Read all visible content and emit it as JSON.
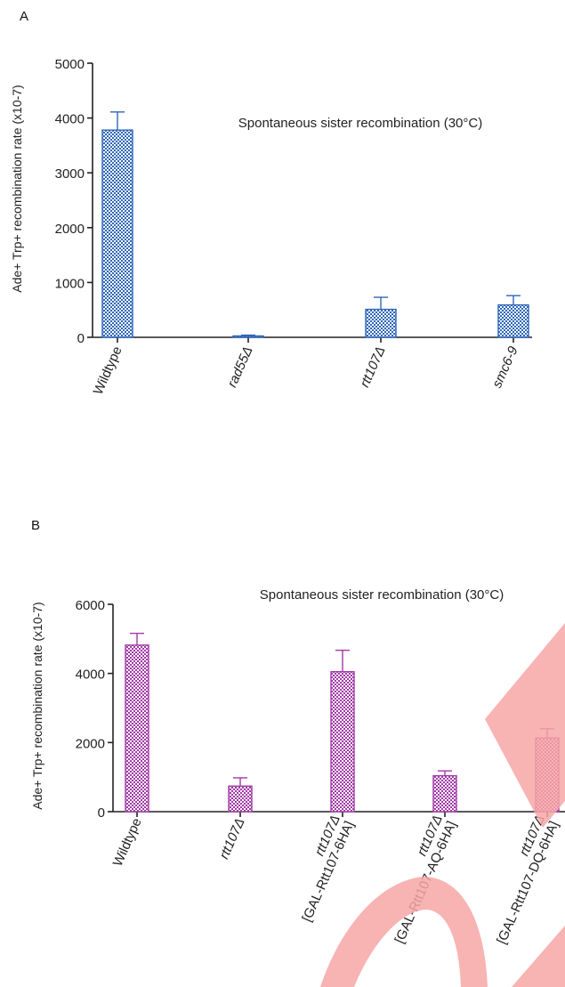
{
  "chart_data": [
    {
      "panel_label": "A",
      "type": "bar",
      "title": "Spontaneous sister recombination (30°C)",
      "ylabel": "Ade+ Trp+ recombination rate (x10-7)",
      "xlabel": "",
      "ylim": [
        0,
        5000
      ],
      "yticks": [
        0,
        1000,
        2000,
        3000,
        4000,
        5000
      ],
      "categories": [
        "Wildtype",
        "rad55Δ",
        "rtt107Δ",
        "smc6-9"
      ],
      "category_lines": [
        [
          "Wildtype"
        ],
        [
          "rad55Δ"
        ],
        [
          "rtt107Δ"
        ],
        [
          "smc6-9"
        ]
      ],
      "values": [
        3780,
        25,
        510,
        590
      ],
      "errors": [
        330,
        15,
        220,
        170
      ],
      "bar_color": "#2f67b8",
      "pattern": "checkered",
      "grid": false,
      "legend": "none"
    },
    {
      "panel_label": "B",
      "type": "bar",
      "title": "Spontaneous sister recombination (30°C)",
      "ylabel": "Ade+ Trp+ recombination rate (x10-7)",
      "xlabel": "",
      "ylim": [
        0,
        6000
      ],
      "yticks": [
        0,
        2000,
        4000,
        6000
      ],
      "categories": [
        "Wildtype",
        "rtt107Δ",
        "rtt107Δ [GAL-Rtt107-6HA]",
        "rtt107Δ [GAL-Rtt107-AQ-6HA]",
        "rtt107Δ [GAL-Rtt107-DQ-6HA]"
      ],
      "category_lines": [
        [
          "Wildtype"
        ],
        [
          "rtt107Δ"
        ],
        [
          "rtt107Δ",
          "[GAL-Rtt107-6HA]"
        ],
        [
          "rtt107Δ",
          "[GAL-Rtt107-AQ-6HA]"
        ],
        [
          "rtt107Δ",
          "[GAL-Rtt107-DQ-6HA]"
        ]
      ],
      "values": [
        4820,
        740,
        4050,
        1040,
        2130
      ],
      "errors": [
        340,
        240,
        620,
        140,
        270
      ],
      "bar_color": "#a23aa8",
      "pattern": "checkered",
      "grid": false,
      "legend": "none"
    }
  ],
  "watermark_color": "#f7a6a6"
}
